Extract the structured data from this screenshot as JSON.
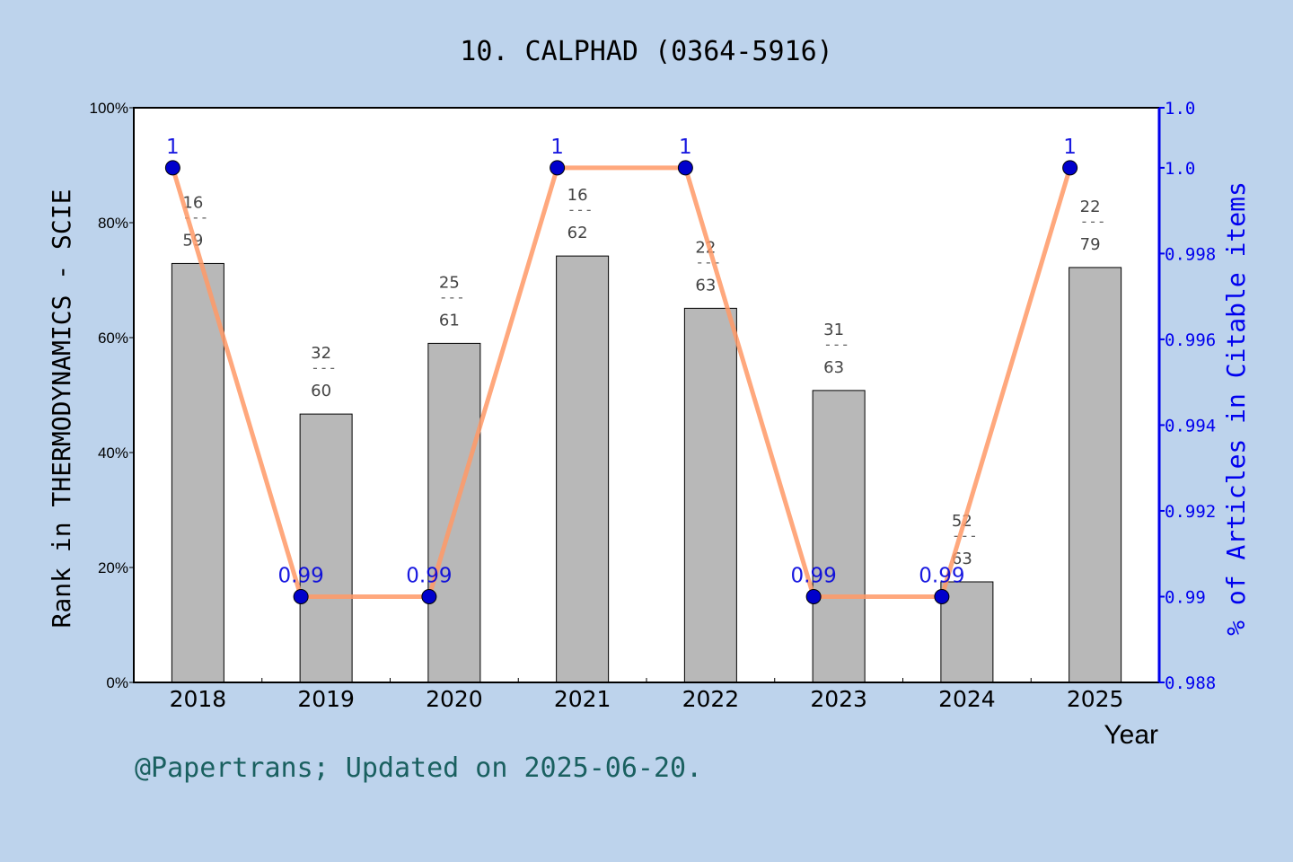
{
  "chart_data": {
    "type": "bar+line",
    "title": "10. CALPHAD (0364-5916)",
    "xlabel": "Year",
    "ylabel": "Rank in THERMODYNAMICS - SCIE",
    "y2label": "% of Articles in Citable items",
    "categories": [
      "2018",
      "2019",
      "2020",
      "2021",
      "2022",
      "2023",
      "2024",
      "2025"
    ],
    "ylim": [
      0,
      100
    ],
    "yticks": [
      "0%",
      "20%",
      "40%",
      "60%",
      "80%",
      "100%"
    ],
    "y2lim": [
      0.988,
      1.0014
    ],
    "y2ticks": [
      {
        "v": 0.988,
        "label": "0.988"
      },
      {
        "v": 0.99,
        "label": "0.99"
      },
      {
        "v": 0.992,
        "label": "0.992"
      },
      {
        "v": 0.994,
        "label": "0.994"
      },
      {
        "v": 0.996,
        "label": "0.996"
      },
      {
        "v": 0.998,
        "label": "0.998"
      },
      {
        "v": 1.0,
        "label": "1.0"
      },
      {
        "v": 1.0014,
        "label": "1.0"
      }
    ],
    "bars": {
      "ranks": [
        16,
        32,
        25,
        16,
        22,
        31,
        52,
        22
      ],
      "totals": [
        59,
        60,
        61,
        62,
        63,
        63,
        63,
        79
      ],
      "values_percent": [
        72.9,
        46.7,
        59.0,
        74.2,
        65.1,
        50.8,
        17.5,
        72.2
      ],
      "color": "#b8b8b8"
    },
    "line": {
      "values": [
        1,
        0.99,
        0.99,
        1,
        1,
        0.99,
        0.99,
        1
      ],
      "labels": [
        "1",
        "0.99",
        "0.99",
        "1",
        "1",
        "0.99",
        "0.99",
        "1"
      ],
      "line_color": "#ff9966",
      "marker_color": "#0000cc"
    },
    "grid": false,
    "legend": "none"
  },
  "footer": "@Papertrans; Updated on 2025-06-20."
}
